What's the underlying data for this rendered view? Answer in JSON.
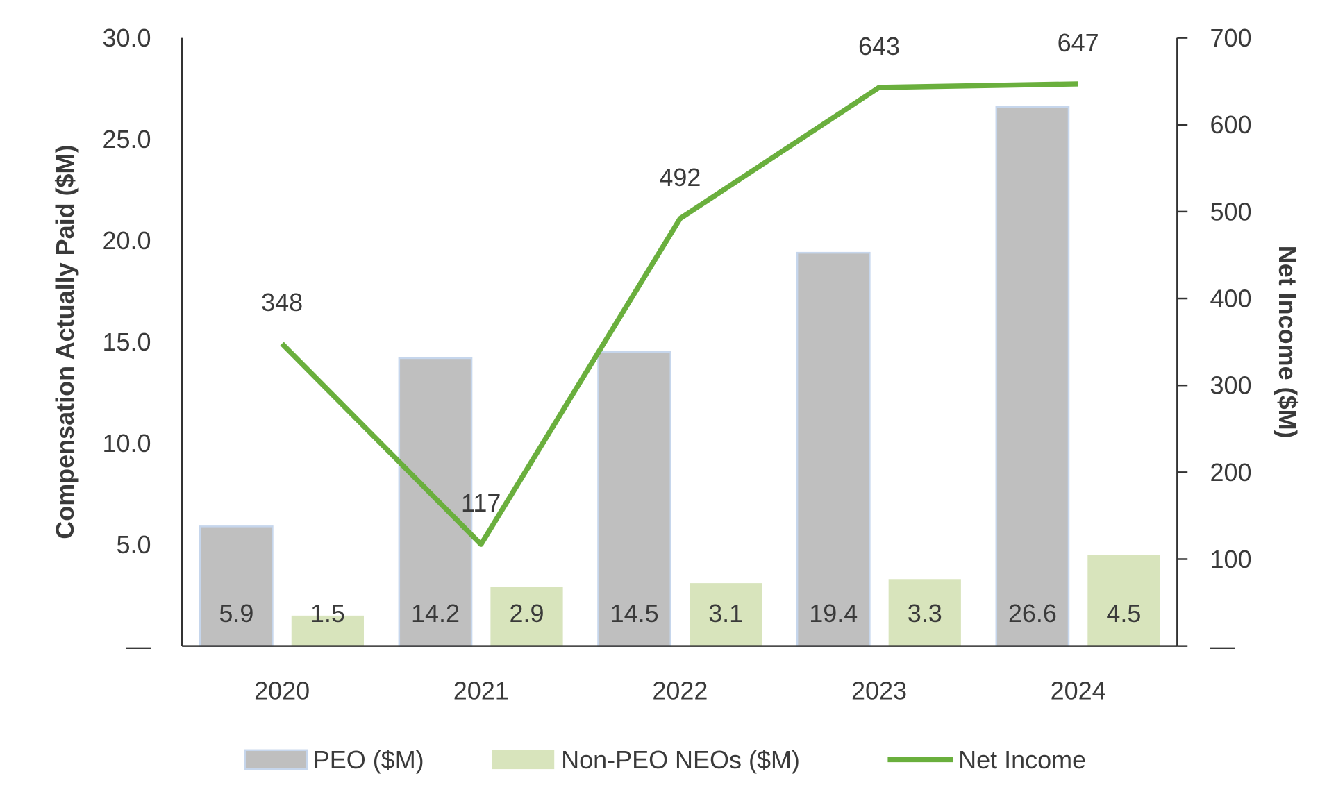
{
  "chart_data": {
    "type": "bar+line",
    "categories": [
      "2020",
      "2021",
      "2022",
      "2023",
      "2024"
    ],
    "series": [
      {
        "name": "PEO ($M)",
        "type": "bar",
        "axis": "left",
        "values": [
          5.9,
          14.2,
          14.5,
          19.4,
          26.6
        ],
        "labels": [
          "5.9",
          "14.2",
          "14.5",
          "19.4",
          "26.6"
        ],
        "color": "#bfbfbf",
        "border": "#c6d6ec"
      },
      {
        "name": "Non-PEO NEOs ($M)",
        "type": "bar",
        "axis": "left",
        "values": [
          1.5,
          2.9,
          3.1,
          3.3,
          4.5
        ],
        "labels": [
          "1.5",
          "2.9",
          "3.1",
          "3.3",
          "4.5"
        ],
        "color": "#d8e4bc"
      },
      {
        "name": "Net Income",
        "type": "line",
        "axis": "right",
        "values": [
          348,
          117,
          492,
          643,
          647
        ],
        "labels": [
          "348",
          "117",
          "492",
          "643",
          "647"
        ],
        "color": "#6aaf3d"
      }
    ],
    "ylabel": "Compensation Actually Paid ($M)",
    "y2label": "Net Income ($M)",
    "ylim": [
      0,
      30
    ],
    "y2lim": [
      0,
      700
    ],
    "yticks": [
      "—",
      "5.0",
      "10.0",
      "15.0",
      "20.0",
      "25.0",
      "30.0"
    ],
    "y2ticks": [
      "—",
      "100",
      "200",
      "300",
      "400",
      "500",
      "600",
      "700"
    ],
    "legend_position": "bottom",
    "grid": false
  }
}
